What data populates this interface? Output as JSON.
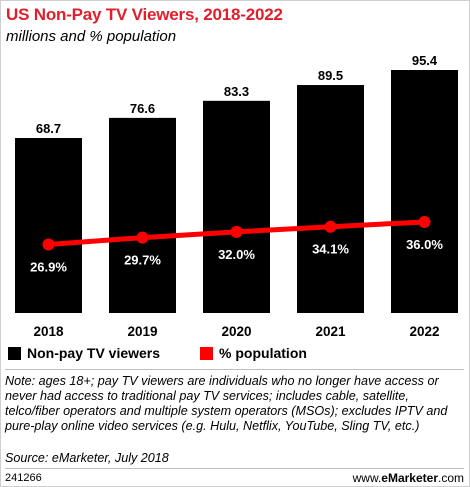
{
  "header": {
    "title": "US Non-Pay TV Viewers, 2018-2022",
    "subtitle": "millions and % population"
  },
  "legend": {
    "viewers_label": "Non-pay TV viewers",
    "percent_label": "% population"
  },
  "colors": {
    "title": "#e01f2b",
    "bars": "#000000",
    "line": "#ff0000",
    "bar_label": "#ffffff"
  },
  "chart_data": {
    "type": "bar",
    "categories": [
      "2018",
      "2019",
      "2020",
      "2021",
      "2022"
    ],
    "series": [
      {
        "name": "Non-pay TV viewers",
        "type": "bar",
        "values": [
          68.7,
          76.6,
          83.3,
          89.5,
          95.4
        ],
        "labels": [
          "68.7",
          "76.6",
          "83.3",
          "89.5",
          "95.4"
        ]
      },
      {
        "name": "% population",
        "type": "line",
        "values": [
          26.9,
          29.7,
          32.0,
          34.1,
          36.0
        ],
        "labels": [
          "26.9%",
          "29.7%",
          "32.0%",
          "34.1%",
          "36.0%"
        ]
      }
    ],
    "title": "US Non-Pay TV Viewers, 2018-2022",
    "subtitle": "millions and % population",
    "ylim": [
      0,
      95.4
    ],
    "grid": false,
    "legend_position": "bottom-left"
  },
  "footnotes": {
    "note": "Note: ages 18+; pay TV viewers are individuals who no longer have access or never had access to traditional pay TV services; includes cable, satellite, telco/fiber operators and multiple system operators (MSOs); excludes IPTV and pure-play online video services (e.g. Hulu, Netflix, YouTube, Sling TV, etc.)",
    "source": "Source: eMarketer, July 2018"
  },
  "footer": {
    "id": "241266",
    "brand_prefix": "www.",
    "brand_name": "eMarketer",
    "brand_suffix": ".com"
  }
}
